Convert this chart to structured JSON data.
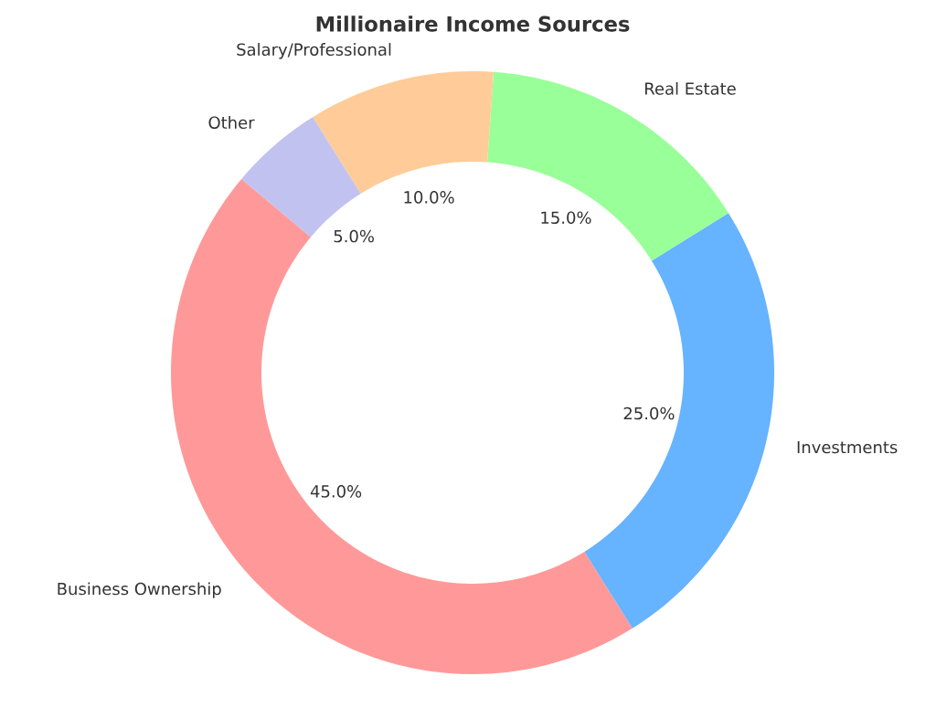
{
  "chart_data": {
    "type": "donut",
    "title": "Millionaire Income Sources",
    "categories": [
      "Business Ownership",
      "Investments",
      "Real Estate",
      "Salary/Professional",
      "Other"
    ],
    "values": [
      45,
      25,
      15,
      10,
      5
    ],
    "colors": [
      "#ff9999",
      "#66b3ff",
      "#99ff99",
      "#ffcc99",
      "#c2c2f0"
    ],
    "value_labels": [
      "45.0%",
      "25.0%",
      "15.0%",
      "10.0%",
      "5.0%"
    ]
  }
}
